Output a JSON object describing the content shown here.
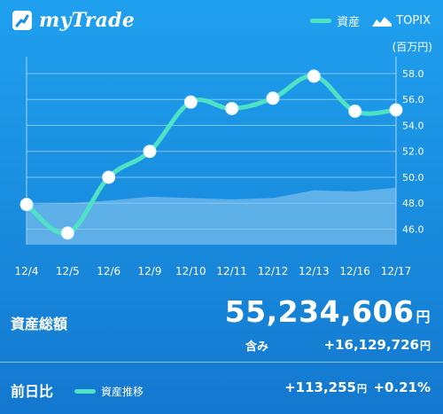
{
  "app": {
    "title": "myTrade"
  },
  "legend": {
    "asset_label": "資産",
    "benchmark_label": "TOPIX",
    "unit": "(百万円)"
  },
  "colors": {
    "asset_line": "#4fe3c6",
    "area_fill": "#8cc8f0",
    "background": "#1a8fe0",
    "marker": "#ffffff"
  },
  "chart_data": {
    "type": "line",
    "x": [
      "12/4",
      "12/5",
      "12/6",
      "12/9",
      "12/10",
      "12/11",
      "12/12",
      "12/13",
      "12/16",
      "12/17"
    ],
    "series": [
      {
        "name": "資産",
        "values": [
          47.9,
          45.7,
          50.0,
          52.0,
          55.8,
          55.3,
          56.1,
          57.8,
          55.1,
          55.2
        ]
      },
      {
        "name": "TOPIX",
        "type": "area",
        "values": [
          47.9,
          48.0,
          48.2,
          48.5,
          48.4,
          48.3,
          48.4,
          49.0,
          48.9,
          49.2
        ]
      }
    ],
    "yticks": [
      "46.0",
      "48.0",
      "50.0",
      "52.0",
      "54.0",
      "56.0",
      "58.0"
    ],
    "ylim": [
      44.8,
      59.3
    ],
    "grid": true
  },
  "summary": {
    "total_label": "資産総額",
    "total_value": "55,234,606",
    "total_unit": "円",
    "gain_label": "含み",
    "gain_value": "+16,129,726",
    "gain_unit": "円"
  },
  "comparison": {
    "label": "前日比",
    "legend_label": "資産推移",
    "change_yen": "+113,255",
    "change_unit": "円",
    "change_pct": "+0.21%"
  }
}
